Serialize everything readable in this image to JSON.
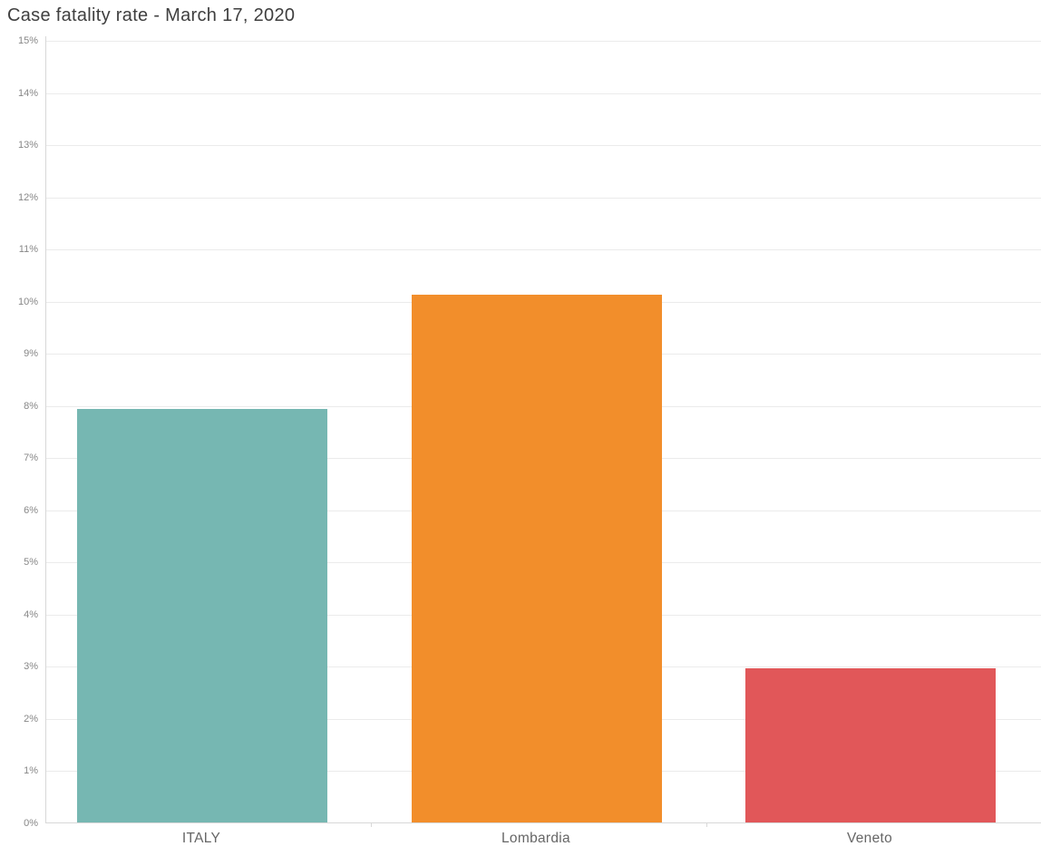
{
  "title": "Case fatality rate - March 17, 2020",
  "chart_data": {
    "type": "bar",
    "title": "Case fatality rate - March 17, 2020",
    "categories": [
      "ITALY",
      "Lombardia",
      "Veneto"
    ],
    "values": [
      7.93,
      10.12,
      2.96
    ],
    "unit": "%",
    "bar_colors": [
      "#76b7b2",
      "#f28e2b",
      "#e15759"
    ],
    "xlabel": "",
    "ylabel": "",
    "ylim": [
      0,
      15
    ],
    "ytick_step": 1,
    "ytick_labels": [
      "0%",
      "1%",
      "2%",
      "3%",
      "4%",
      "5%",
      "6%",
      "7%",
      "8%",
      "9%",
      "10%",
      "11%",
      "12%",
      "13%",
      "14%",
      "15%"
    ],
    "grid": "horizontal",
    "legend": "none"
  },
  "colors": {
    "background": "#ffffff",
    "title_text": "#3f3f3f",
    "ytick_text": "#878787",
    "category_text": "#666666",
    "gridline": "#ebebeb",
    "axis_line": "#d8d8d8"
  }
}
